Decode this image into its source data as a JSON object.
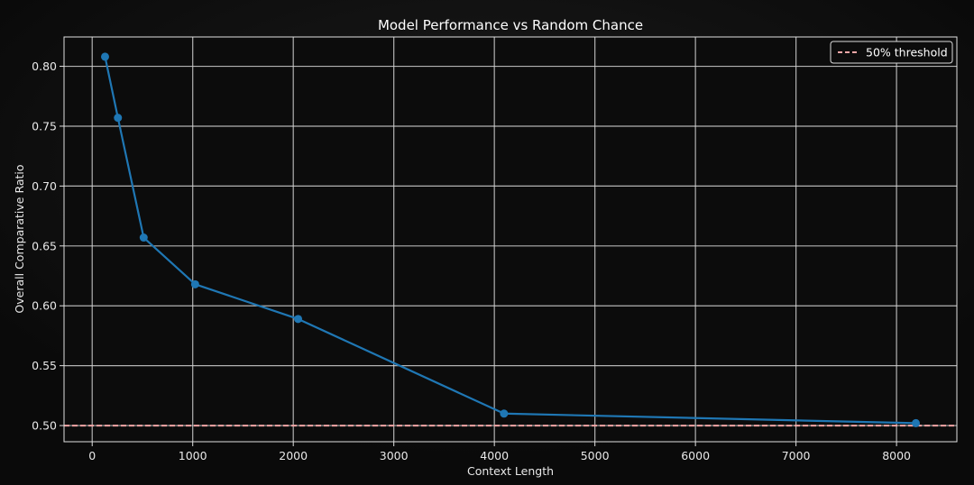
{
  "chart_data": {
    "type": "line",
    "title": "Model Performance vs Random Chance",
    "xlabel": "Context Length",
    "ylabel": "Overall Comparative Ratio",
    "xlim": [
      -280,
      8600
    ],
    "ylim": [
      0.4865,
      0.8245
    ],
    "x_ticks": [
      0,
      1000,
      2000,
      3000,
      4000,
      5000,
      6000,
      7000,
      8000
    ],
    "y_ticks": [
      0.5,
      0.55,
      0.6,
      0.65,
      0.7,
      0.75,
      0.8
    ],
    "grid": true,
    "legend_position": "top-right",
    "series": [
      {
        "x": [
          128,
          256,
          512,
          1024,
          2048,
          4096,
          8192
        ],
        "y": [
          0.808,
          0.757,
          0.657,
          0.618,
          0.589,
          0.51,
          0.502
        ],
        "color": "#1f77b4",
        "marker": "circle"
      }
    ],
    "reference_lines": [
      {
        "name": "50% threshold",
        "y": 0.5,
        "style": "dashed",
        "color": "#f4a6a6"
      }
    ]
  }
}
